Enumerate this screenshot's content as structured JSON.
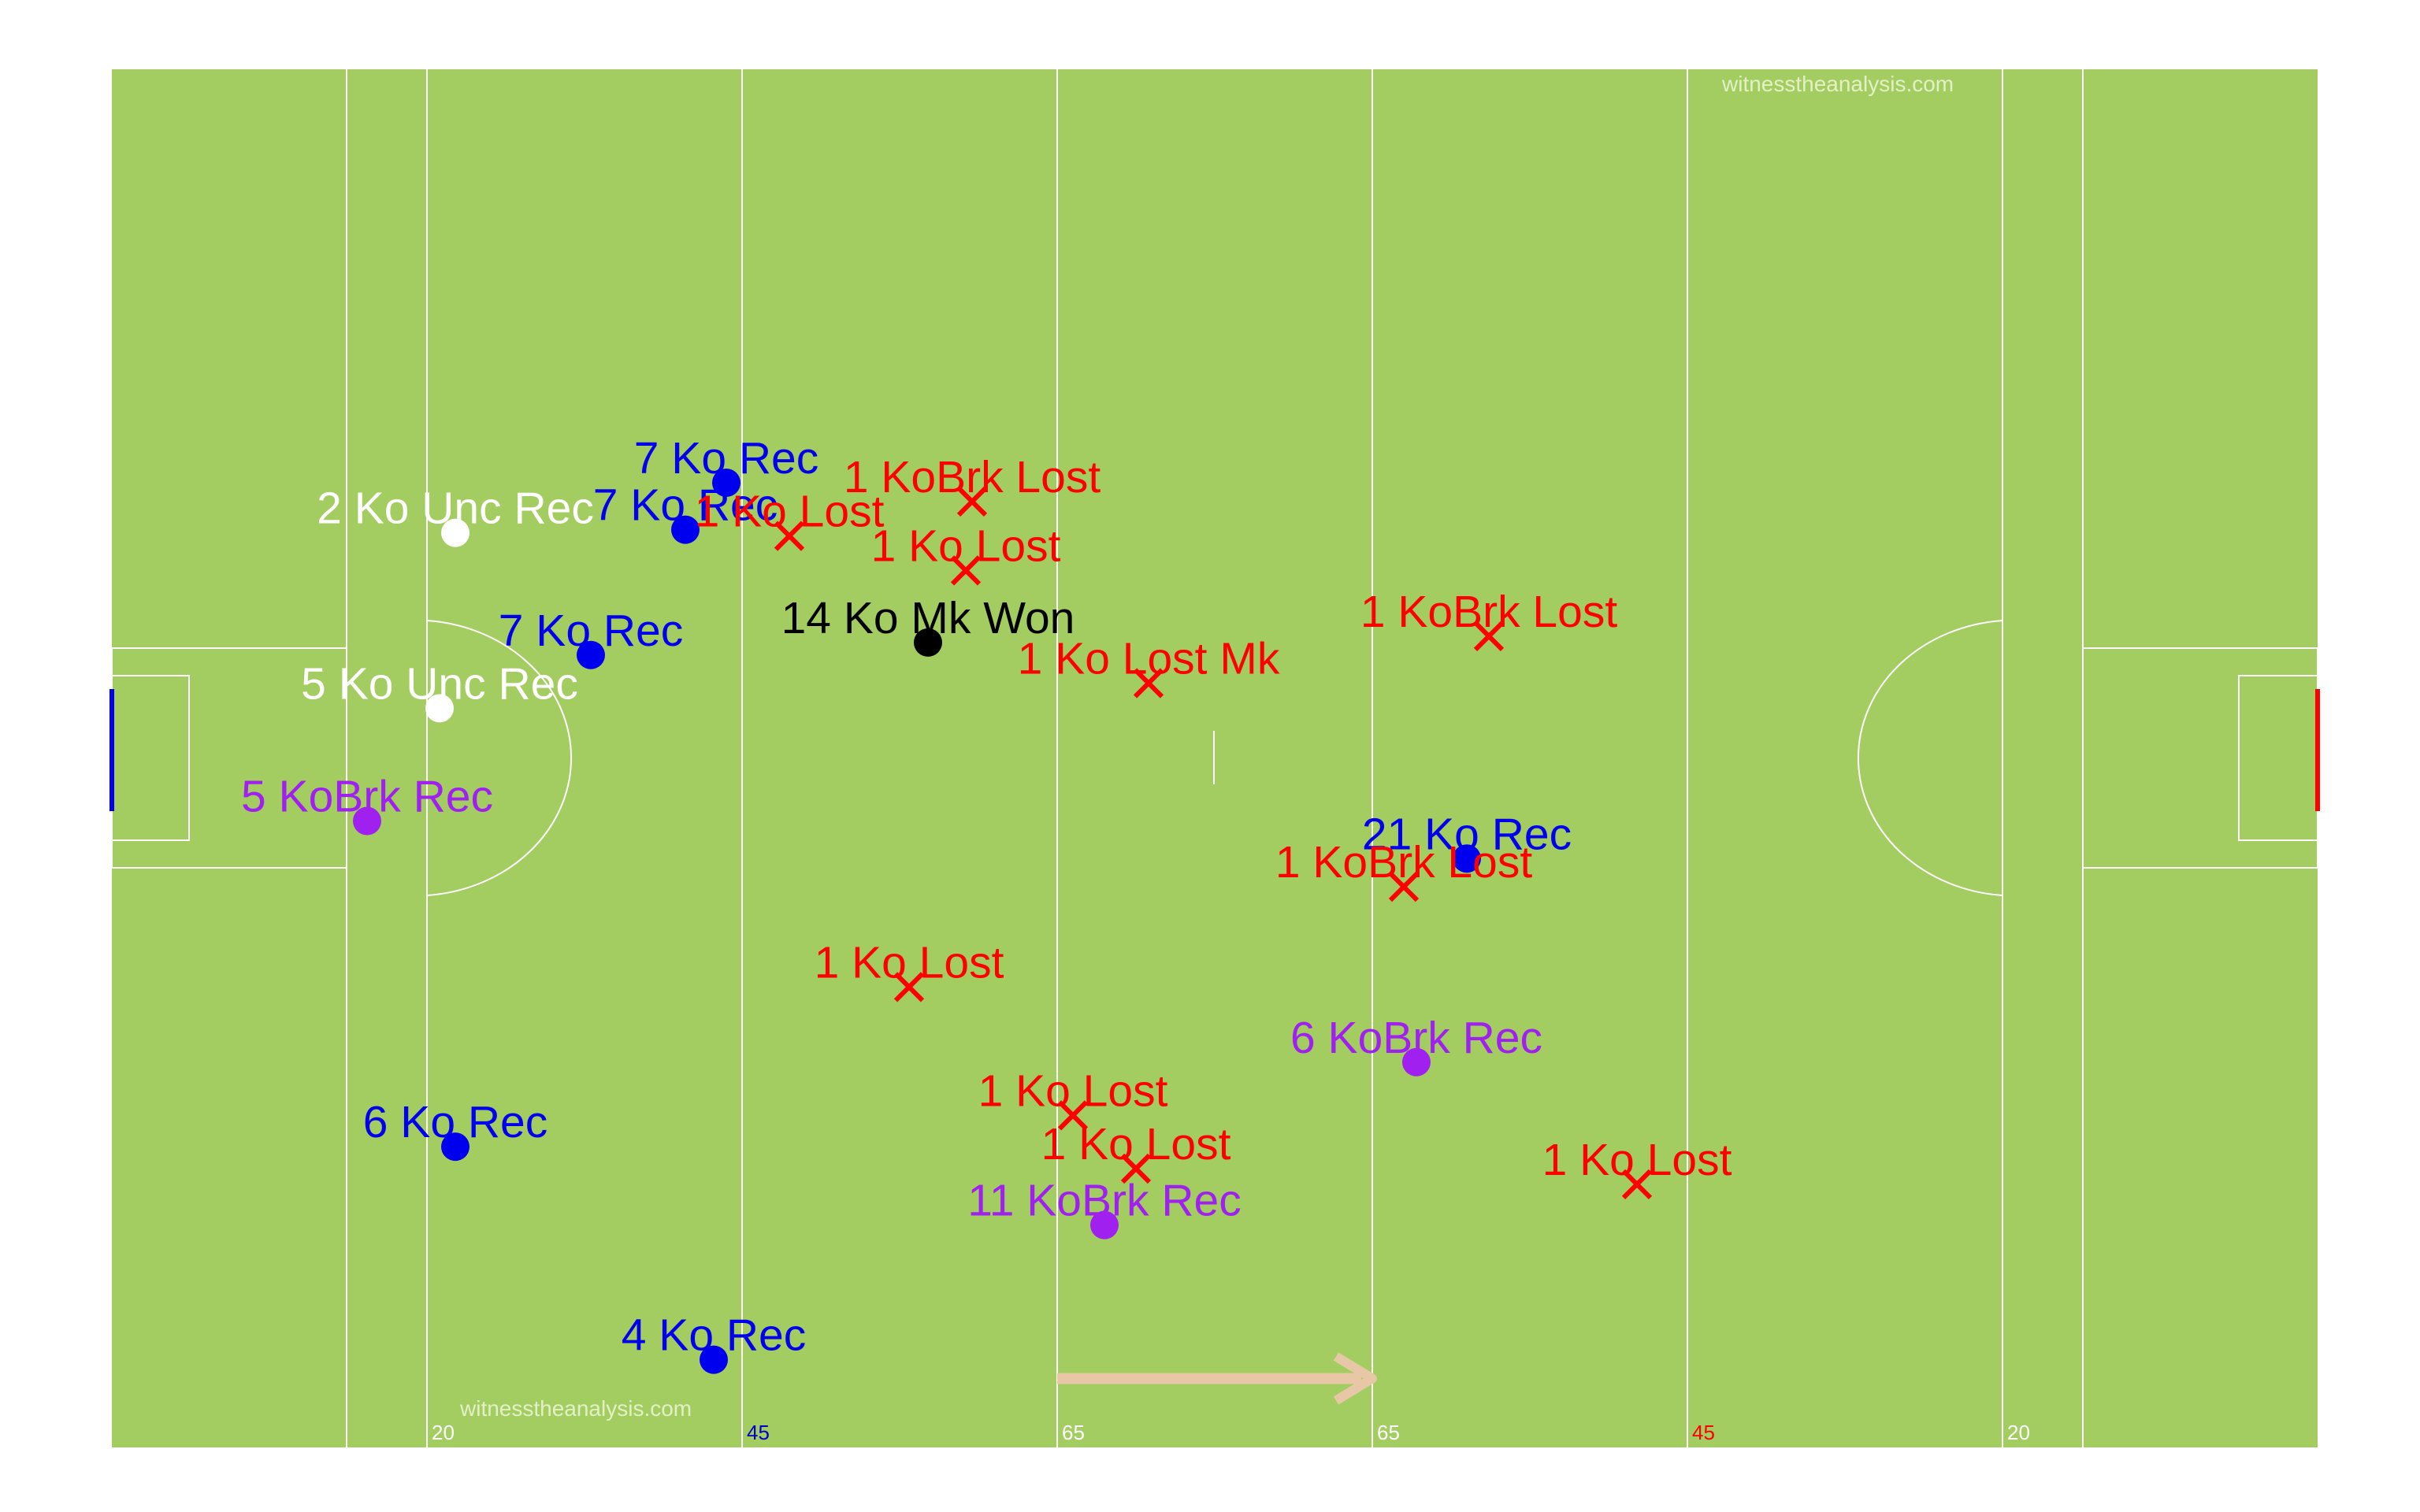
{
  "chart_data": {
    "type": "scatter",
    "title": "",
    "x_range": [
      0,
      140
    ],
    "y_range": [
      0,
      88
    ],
    "watermarks": [
      "witnesstheanalysis.com",
      "witnesstheanalysis.com"
    ],
    "yard_markers": [
      {
        "text": "20",
        "x": 20,
        "color": "#ffffff"
      },
      {
        "text": "45",
        "x": 40,
        "color": "#0000cc"
      },
      {
        "text": "65",
        "x": 60,
        "color": "#ffffff"
      },
      {
        "text": "65",
        "x": 80,
        "color": "#ffffff"
      },
      {
        "text": "45",
        "x": 100,
        "color": "#ff0000"
      },
      {
        "text": "20",
        "x": 120,
        "color": "#ffffff"
      }
    ],
    "colors": {
      "pitch": "#a3cd60",
      "lines": "#ffffff",
      "Ko Rec": "#0000ee",
      "Ko Unc Rec": "#ffffff",
      "KoBrk Rec": "#a020f0",
      "Ko Mk Won": "#000000",
      "Lost": "#ff0000",
      "arrow": "#e8c7a6",
      "left_goal": "#0000ee",
      "right_goal": "#ff0000"
    },
    "events": [
      {
        "label": "7 Ko Rec",
        "type": "Ko Rec",
        "marker": "dot",
        "x": 39.0,
        "y": 61.6
      },
      {
        "label": "7 Ko Rec",
        "type": "Ko Rec",
        "marker": "dot",
        "x": 36.4,
        "y": 58.6
      },
      {
        "label": "7 Ko Rec",
        "type": "Ko Rec",
        "marker": "dot",
        "x": 30.4,
        "y": 50.6
      },
      {
        "label": "21 Ko Rec",
        "type": "Ko Rec",
        "marker": "dot",
        "x": 86.0,
        "y": 37.6
      },
      {
        "label": "6 Ko Rec",
        "type": "Ko Rec",
        "marker": "dot",
        "x": 21.8,
        "y": 19.2
      },
      {
        "label": "4 Ko Rec",
        "type": "Ko Rec",
        "marker": "dot",
        "x": 38.2,
        "y": 5.6
      },
      {
        "label": "2 Ko Unc Rec",
        "type": "Ko Unc Rec",
        "marker": "dot",
        "x": 21.8,
        "y": 58.4
      },
      {
        "label": "5 Ko Unc Rec",
        "type": "Ko Unc Rec",
        "marker": "dot",
        "x": 20.8,
        "y": 47.2
      },
      {
        "label": "5 KoBrk Rec",
        "type": "KoBrk Rec",
        "marker": "dot",
        "x": 16.2,
        "y": 40.0
      },
      {
        "label": "6 KoBrk Rec",
        "type": "KoBrk Rec",
        "marker": "dot",
        "x": 82.8,
        "y": 24.6
      },
      {
        "label": "11 KoBrk Rec",
        "type": "KoBrk Rec",
        "marker": "dot",
        "x": 63.0,
        "y": 14.2
      },
      {
        "label": "14 Ko Mk Won",
        "type": "Ko Mk Won",
        "marker": "dot",
        "x": 51.8,
        "y": 51.4
      },
      {
        "label": "1 KoBrk Lost",
        "type": "Lost",
        "marker": "x",
        "x": 54.6,
        "y": 60.4
      },
      {
        "label": "1 Ko Lost",
        "type": "Lost",
        "marker": "x",
        "x": 43.0,
        "y": 58.2
      },
      {
        "label": "1 Ko Lost",
        "type": "Lost",
        "marker": "x",
        "x": 54.2,
        "y": 56.0
      },
      {
        "label": "1 KoBrk Lost",
        "type": "Lost",
        "marker": "x",
        "x": 87.4,
        "y": 51.8
      },
      {
        "label": "1 Ko Lost Mk",
        "type": "Lost",
        "marker": "x",
        "x": 65.8,
        "y": 48.8
      },
      {
        "label": "1 KoBrk Lost",
        "type": "Lost",
        "marker": "x",
        "x": 82.0,
        "y": 35.8
      },
      {
        "label": "1 Ko Lost",
        "type": "Lost",
        "marker": "x",
        "x": 50.6,
        "y": 29.4
      },
      {
        "label": "1 Ko Lost",
        "type": "Lost",
        "marker": "x",
        "x": 61.0,
        "y": 21.2
      },
      {
        "label": "1 Ko Lost",
        "type": "Lost",
        "marker": "x",
        "x": 65.0,
        "y": 17.8
      },
      {
        "label": "1 Ko Lost",
        "type": "Lost",
        "marker": "x",
        "x": 96.8,
        "y": 16.8
      }
    ],
    "direction_arrow": {
      "from_x": 60,
      "to_x": 80,
      "y": 4.4
    }
  }
}
